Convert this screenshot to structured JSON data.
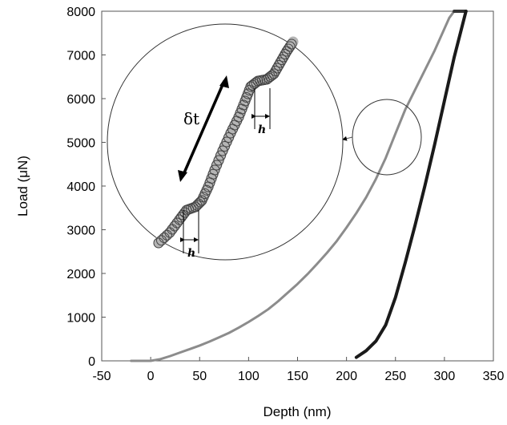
{
  "chart_data": {
    "type": "line",
    "xlabel": "Depth (nm)",
    "ylabel": "Load (μN)",
    "xlim": [
      -50,
      350
    ],
    "ylim": [
      0,
      8000
    ],
    "x_ticks": [
      -50,
      0,
      50,
      100,
      150,
      200,
      250,
      300,
      350
    ],
    "y_ticks": [
      0,
      1000,
      2000,
      3000,
      4000,
      5000,
      6000,
      7000,
      8000
    ],
    "grid": false,
    "series": [
      {
        "role": "loading",
        "color": "#8c8c8c",
        "x": [
          -20,
          0,
          10,
          20,
          30,
          40,
          50,
          60,
          70,
          80,
          90,
          100,
          110,
          120,
          130,
          140,
          150,
          160,
          170,
          180,
          190,
          200,
          210,
          220,
          230,
          240,
          250,
          260,
          270,
          280,
          290,
          300,
          305,
          310
        ],
        "y": [
          0,
          0,
          40,
          110,
          190,
          270,
          350,
          440,
          540,
          640,
          760,
          890,
          1030,
          1180,
          1360,
          1560,
          1760,
          1980,
          2220,
          2470,
          2740,
          3050,
          3380,
          3740,
          4160,
          4640,
          5200,
          5750,
          6200,
          6650,
          7100,
          7600,
          7850,
          8000
        ]
      },
      {
        "role": "hold",
        "color": "#333333",
        "x": [
          310,
          322
        ],
        "y": [
          8000,
          8000
        ]
      },
      {
        "role": "unloading",
        "color": "#1a1a1a",
        "x": [
          210,
          220,
          230,
          240,
          250,
          260,
          270,
          280,
          290,
          300,
          310,
          322
        ],
        "y": [
          80,
          230,
          450,
          820,
          1450,
          2250,
          3100,
          4000,
          4950,
          5950,
          6950,
          8000
        ]
      }
    ],
    "annotations": {
      "zoom_label": "δt",
      "step_label": "h"
    }
  }
}
